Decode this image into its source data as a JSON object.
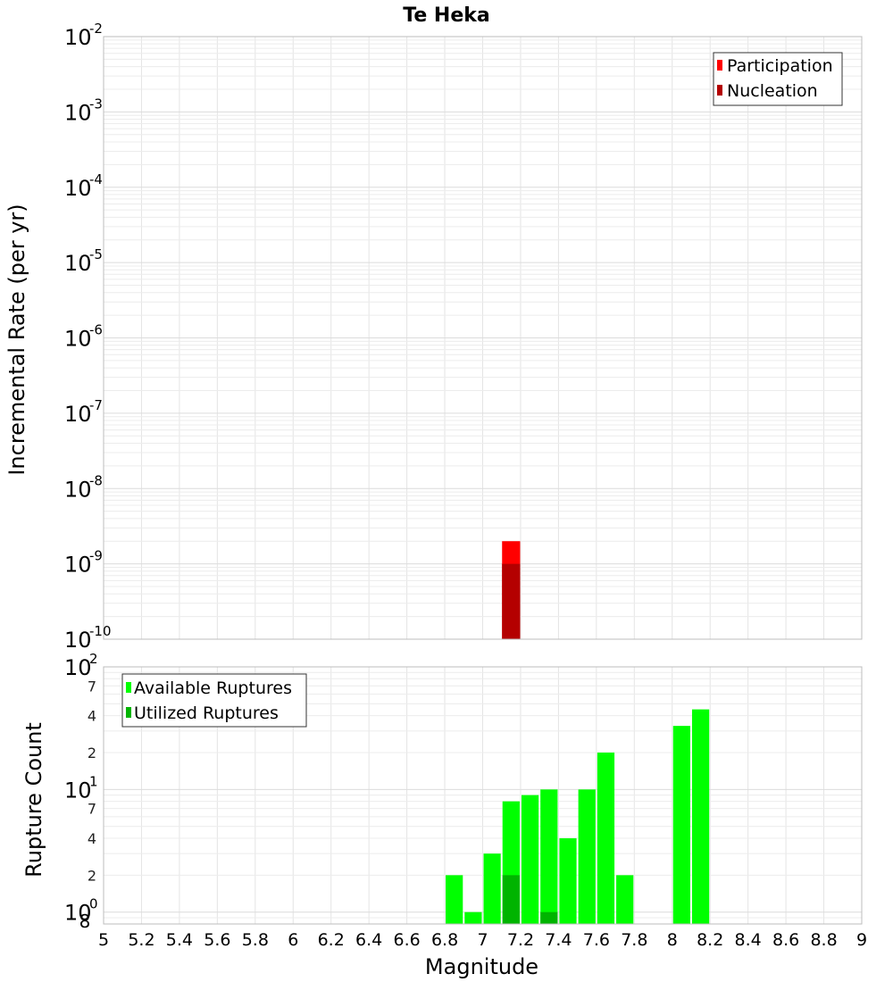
{
  "chart_data": [
    {
      "type": "bar",
      "title": "Te Heka",
      "xlabel": "",
      "ylabel": "Incremental Rate (per yr)",
      "xlim": [
        5,
        9
      ],
      "ylim": [
        1e-10,
        0.01
      ],
      "y_scale": "log",
      "y_tick_labels": [
        {
          "value": 1e-10,
          "base": "10",
          "exp": "-10"
        },
        {
          "value": 1e-09,
          "base": "10",
          "exp": "-9"
        },
        {
          "value": 1e-08,
          "base": "10",
          "exp": "-8"
        },
        {
          "value": 1e-07,
          "base": "10",
          "exp": "-7"
        },
        {
          "value": 1e-06,
          "base": "10",
          "exp": "-6"
        },
        {
          "value": 1e-05,
          "base": "10",
          "exp": "-5"
        },
        {
          "value": 0.0001,
          "base": "10",
          "exp": "-4"
        },
        {
          "value": 0.001,
          "base": "10",
          "exp": "-3"
        },
        {
          "value": 0.01,
          "base": "10",
          "exp": "-2"
        }
      ],
      "grid": true,
      "legend_position": "top-right",
      "bar_width": 0.1,
      "series": [
        {
          "name": "Participation",
          "color": "#ff0000",
          "points": [
            {
              "x": 7.15,
              "y": 2e-09
            }
          ]
        },
        {
          "name": "Nucleation",
          "color": "#b40000",
          "points": [
            {
              "x": 7.15,
              "y": 1e-09
            }
          ]
        }
      ]
    },
    {
      "type": "bar",
      "title": "",
      "xlabel": "Magnitude",
      "ylabel": "Rupture Count",
      "xlim": [
        5,
        9
      ],
      "ylim": [
        0.8,
        100
      ],
      "y_scale": "log",
      "x_ticks": [
        "5",
        "5.2",
        "5.4",
        "5.6",
        "5.8",
        "6",
        "6.2",
        "6.4",
        "6.6",
        "6.8",
        "7",
        "7.2",
        "7.4",
        "7.6",
        "7.8",
        "8",
        "8.2",
        "8.4",
        "8.6",
        "8.8",
        "9"
      ],
      "y_major_labels": [
        {
          "value": 1,
          "base": "10",
          "exp": "0"
        },
        {
          "value": 10,
          "base": "10",
          "exp": "1"
        },
        {
          "value": 100,
          "base": "10",
          "exp": "2"
        }
      ],
      "y_minor_labels": [
        {
          "value": 0.8,
          "label": "8"
        },
        {
          "value": 2,
          "label": "2"
        },
        {
          "value": 4,
          "label": "4"
        },
        {
          "value": 7,
          "label": "7"
        },
        {
          "value": 20,
          "label": "2"
        },
        {
          "value": 40,
          "label": "4"
        },
        {
          "value": 70,
          "label": "7"
        }
      ],
      "grid": true,
      "legend_position": "top-left",
      "bar_width": 0.1,
      "series": [
        {
          "name": "Available Ruptures",
          "color": "#00ff00",
          "points": [
            {
              "x": 6.85,
              "y": 2
            },
            {
              "x": 6.95,
              "y": 1
            },
            {
              "x": 7.05,
              "y": 3
            },
            {
              "x": 7.15,
              "y": 8
            },
            {
              "x": 7.25,
              "y": 9
            },
            {
              "x": 7.35,
              "y": 10
            },
            {
              "x": 7.45,
              "y": 4
            },
            {
              "x": 7.55,
              "y": 10
            },
            {
              "x": 7.65,
              "y": 20
            },
            {
              "x": 7.75,
              "y": 2
            },
            {
              "x": 8.05,
              "y": 33
            },
            {
              "x": 8.15,
              "y": 45
            }
          ]
        },
        {
          "name": "Utilized Ruptures",
          "color": "#00b400",
          "points": [
            {
              "x": 7.15,
              "y": 2
            },
            {
              "x": 7.35,
              "y": 1
            }
          ]
        }
      ]
    }
  ]
}
